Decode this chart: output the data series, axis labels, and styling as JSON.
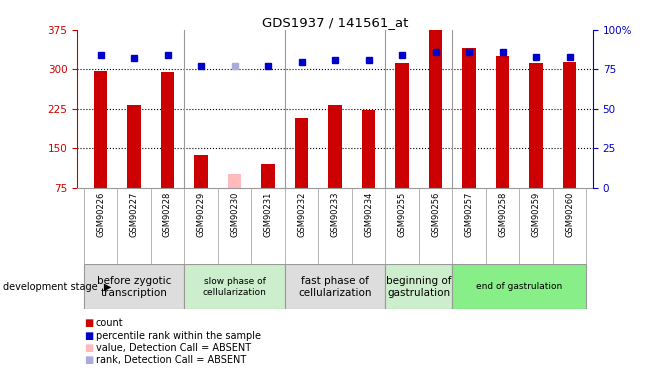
{
  "title": "GDS1937 / 141561_at",
  "samples": [
    "GSM90226",
    "GSM90227",
    "GSM90228",
    "GSM90229",
    "GSM90230",
    "GSM90231",
    "GSM90232",
    "GSM90233",
    "GSM90234",
    "GSM90255",
    "GSM90256",
    "GSM90257",
    "GSM90258",
    "GSM90259",
    "GSM90260"
  ],
  "bar_values": [
    297,
    232,
    295,
    137,
    100,
    120,
    207,
    232,
    222,
    313,
    375,
    340,
    325,
    313,
    315
  ],
  "bar_colors": [
    "#cc0000",
    "#cc0000",
    "#cc0000",
    "#cc0000",
    "#ffbbbb",
    "#cc0000",
    "#cc0000",
    "#cc0000",
    "#cc0000",
    "#cc0000",
    "#cc0000",
    "#cc0000",
    "#cc0000",
    "#cc0000",
    "#cc0000"
  ],
  "rank_values": [
    84,
    82,
    84,
    77,
    77,
    77,
    80,
    81,
    81,
    84,
    86,
    86,
    86,
    83,
    83
  ],
  "rank_colors": [
    "#0000cc",
    "#0000cc",
    "#0000cc",
    "#0000cc",
    "#aaaadd",
    "#0000cc",
    "#0000cc",
    "#0000cc",
    "#0000cc",
    "#0000cc",
    "#0000cc",
    "#0000cc",
    "#0000cc",
    "#0000cc",
    "#0000cc"
  ],
  "ylim_left": [
    75,
    375
  ],
  "ylim_right": [
    0,
    100
  ],
  "yticks_left": [
    75,
    150,
    225,
    300,
    375
  ],
  "yticks_right": [
    0,
    25,
    50,
    75,
    100
  ],
  "stage_groups": [
    {
      "label": "before zygotic\ntranscription",
      "indices": [
        0,
        1,
        2
      ],
      "color": "#dddddd"
    },
    {
      "label": "slow phase of\ncellularization",
      "indices": [
        3,
        4,
        5
      ],
      "color": "#cceecc"
    },
    {
      "label": "fast phase of\ncellularization",
      "indices": [
        6,
        7,
        8
      ],
      "color": "#dddddd"
    },
    {
      "label": "beginning of\ngastrulation",
      "indices": [
        9,
        10
      ],
      "color": "#cceecc"
    },
    {
      "label": "end of gastrulation",
      "indices": [
        11,
        12,
        13,
        14
      ],
      "color": "#88ee88"
    }
  ],
  "legend_items": [
    {
      "label": " count",
      "color": "#cc0000"
    },
    {
      "label": " percentile rank within the sample",
      "color": "#0000cc"
    },
    {
      "label": " value, Detection Call = ABSENT",
      "color": "#ffbbbb"
    },
    {
      "label": " rank, Detection Call = ABSENT",
      "color": "#aaaadd"
    }
  ],
  "xlabel_stage": "development stage",
  "left_axis_color": "#cc0000",
  "right_axis_color": "#0000cc",
  "grid_lines": [
    150,
    225,
    300
  ],
  "bar_width": 0.4
}
